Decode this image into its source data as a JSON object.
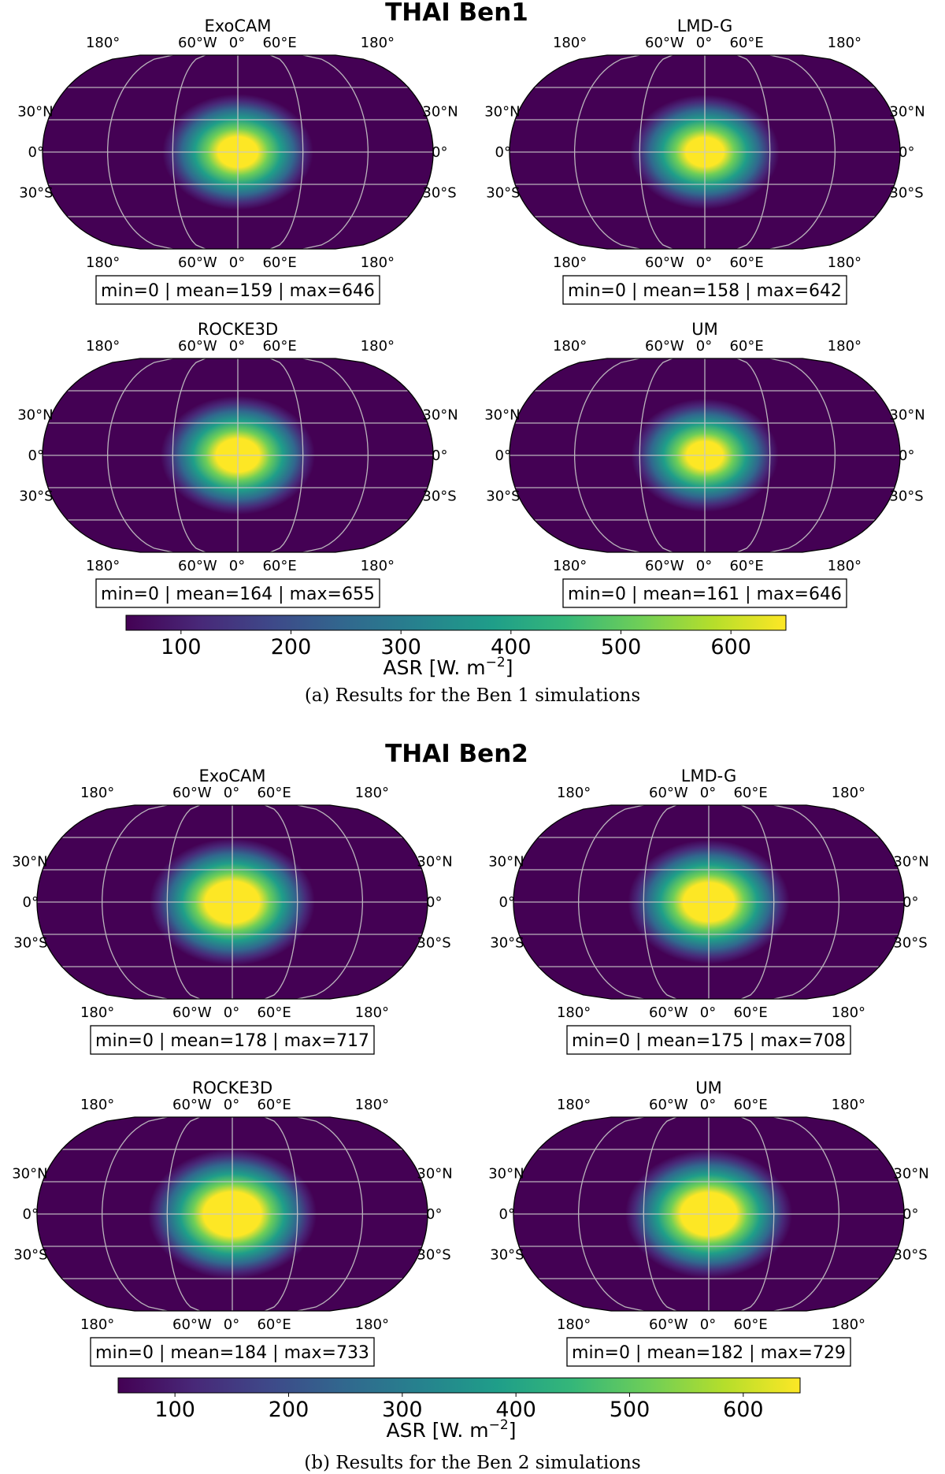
{
  "colors": {
    "viridis": [
      "#440154",
      "#482878",
      "#3e4989",
      "#31688e",
      "#26828e",
      "#1f9e89",
      "#35b779",
      "#6ece58",
      "#b5de2b",
      "#fde725"
    ],
    "background": "#440154",
    "gridline": "#c8c8c8"
  },
  "icons": {
    "map_projection": "robinson-globe"
  },
  "figures": [
    {
      "suptitle": "THAI Ben1",
      "caption": "(a) Results for the Ben 1 simulations",
      "colorbar": {
        "label": "ASR [W. m",
        "label_sup": "−2",
        "label_end": "]",
        "ticks": [
          "100",
          "200",
          "300",
          "400",
          "500",
          "600"
        ],
        "vmin": 50,
        "vmax": 650
      },
      "panels": [
        {
          "name": "ExoCAM",
          "stats": "min=0 | mean=159 | max=646",
          "core_radius": 0.22
        },
        {
          "name": "LMD-G",
          "stats": "min=0 | mean=158 | max=642",
          "core_radius": 0.21
        },
        {
          "name": "ROCKE3D",
          "stats": "min=0 | mean=164 | max=655",
          "core_radius": 0.24
        },
        {
          "name": "UM",
          "stats": "min=0 | mean=161 | max=646",
          "core_radius": 0.2
        }
      ]
    },
    {
      "suptitle": "THAI Ben2",
      "caption": "(b) Results for the Ben 2 simulations",
      "colorbar": {
        "label": "ASR [W. m",
        "label_sup": "−2",
        "label_end": "]",
        "ticks": [
          "100",
          "200",
          "300",
          "400",
          "500",
          "600"
        ],
        "vmin": 50,
        "vmax": 650
      },
      "panels": [
        {
          "name": "ExoCAM",
          "stats": "min=0 | mean=178 | max=717",
          "core_radius": 0.3
        },
        {
          "name": "LMD-G",
          "stats": "min=0 | mean=175 | max=708",
          "core_radius": 0.28
        },
        {
          "name": "ROCKE3D",
          "stats": "min=0 | mean=184 | max=733",
          "core_radius": 0.32
        },
        {
          "name": "UM",
          "stats": "min=0 | mean=182 | max=729",
          "core_radius": 0.31
        }
      ]
    }
  ],
  "map_labels": {
    "top": [
      "180°",
      "60°W",
      "0°",
      "60°E",
      "180°"
    ],
    "bottom": [
      "180°",
      "60°W",
      "0°",
      "60°E",
      "180°"
    ],
    "left": [
      "30°N",
      "0°",
      "30°S"
    ],
    "right": [
      "30°N",
      "0°",
      "30°S"
    ]
  },
  "chart_data": [
    {
      "type": "heatmap",
      "title": "THAI Ben1",
      "caption": "(a) Results for the Ben 1 simulations",
      "colorbar_label": "ASR [W. m−2]",
      "colorbar_ticks": [
        100,
        200,
        300,
        400,
        500,
        600
      ],
      "colorbar_range": [
        50,
        650
      ],
      "series": [
        {
          "name": "ExoCAM",
          "min": 0,
          "mean": 159,
          "max": 646
        },
        {
          "name": "LMD-G",
          "min": 0,
          "mean": 158,
          "max": 642
        },
        {
          "name": "ROCKE3D",
          "min": 0,
          "mean": 164,
          "max": 655
        },
        {
          "name": "UM",
          "min": 0,
          "mean": 161,
          "max": 646
        }
      ]
    },
    {
      "type": "heatmap",
      "title": "THAI Ben2",
      "caption": "(b) Results for the Ben 2 simulations",
      "colorbar_label": "ASR [W. m−2]",
      "colorbar_ticks": [
        100,
        200,
        300,
        400,
        500,
        600
      ],
      "colorbar_range": [
        50,
        650
      ],
      "series": [
        {
          "name": "ExoCAM",
          "min": 0,
          "mean": 178,
          "max": 717
        },
        {
          "name": "LMD-G",
          "min": 0,
          "mean": 175,
          "max": 708
        },
        {
          "name": "ROCKE3D",
          "min": 0,
          "mean": 184,
          "max": 733
        },
        {
          "name": "UM",
          "min": 0,
          "mean": 182,
          "max": 729
        }
      ]
    }
  ]
}
